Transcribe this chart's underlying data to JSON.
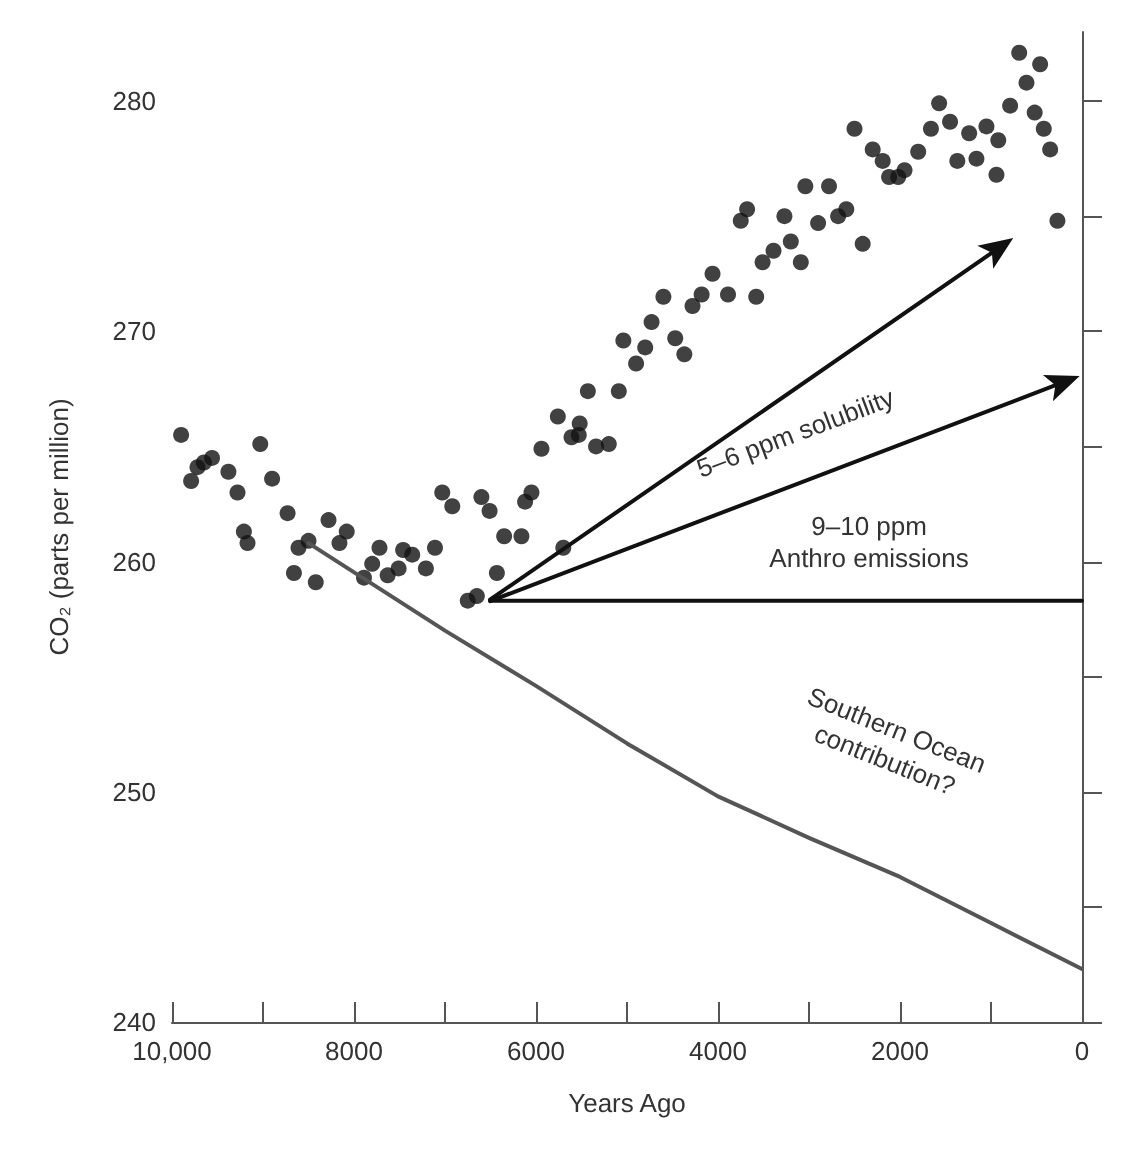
{
  "chart_data": {
    "type": "scatter",
    "xlabel": "Years Ago",
    "ylabel": "CO₂ (parts per million)",
    "xlim": [
      10000,
      0
    ],
    "xticks": [
      {
        "value": 10000,
        "label": "10,000"
      },
      {
        "value": 9000,
        "label": null
      },
      8000,
      {
        "value": 7000,
        "label": null
      },
      6000,
      {
        "value": 5000,
        "label": null
      },
      4000,
      {
        "value": 3000,
        "label": null
      },
      2000,
      {
        "value": 1000,
        "label": null
      },
      0
    ],
    "ylim": [
      240,
      283
    ],
    "yticks": [
      240,
      {
        "value": 245,
        "label": null
      },
      250,
      {
        "value": 255,
        "label": null
      },
      260,
      {
        "value": 265,
        "label": null
      },
      270,
      {
        "value": 275,
        "label": null
      },
      280
    ],
    "grid": false,
    "marker": "circle",
    "series": [
      {
        "type": "scatter",
        "color": "#111111",
        "x": [
          9900,
          9790,
          9720,
          9650,
          9560,
          9380,
          9280,
          9210,
          9170,
          9030,
          8900,
          8730,
          8660,
          8610,
          8500,
          8420,
          8280,
          8160,
          8080,
          7890,
          7800,
          7720,
          7630,
          7510,
          7460,
          7360,
          7210,
          7110,
          7030,
          6920,
          6750,
          6650,
          6600,
          6510,
          6430,
          6350,
          6160,
          6120,
          6050,
          5940,
          5760,
          5700,
          5610,
          5530,
          5520,
          5430,
          5340,
          5200,
          5090,
          5040,
          4900,
          4800,
          4730,
          4600,
          4470,
          4370,
          4280,
          4180,
          4060,
          3890,
          3750,
          3680,
          3580,
          3510,
          3390,
          3270,
          3200,
          3090,
          3040,
          2900,
          2780,
          2680,
          2590,
          2500,
          2410,
          2300,
          2190,
          2120,
          2020,
          1950,
          1800,
          1660,
          1570,
          1450,
          1370,
          1240,
          1160,
          1050,
          920,
          940,
          790,
          690,
          610,
          520,
          460,
          420,
          350,
          270
        ],
        "values": [
          265.5,
          263.5,
          264.1,
          264.3,
          264.5,
          263.9,
          263.0,
          261.3,
          260.8,
          265.1,
          263.6,
          262.1,
          259.5,
          260.6,
          260.9,
          259.1,
          261.8,
          260.8,
          261.3,
          259.3,
          259.9,
          260.6,
          259.4,
          259.7,
          260.5,
          260.3,
          259.7,
          260.6,
          263.0,
          262.4,
          258.3,
          258.5,
          262.8,
          262.2,
          259.5,
          261.1,
          261.1,
          262.6,
          263.0,
          264.9,
          266.3,
          260.6,
          265.4,
          265.5,
          266.0,
          267.4,
          265.0,
          265.1,
          267.4,
          269.6,
          268.6,
          269.3,
          270.4,
          271.5,
          269.7,
          269.0,
          271.1,
          271.6,
          272.5,
          271.6,
          274.8,
          275.3,
          271.5,
          273.0,
          273.5,
          275.0,
          273.9,
          273.0,
          276.3,
          274.7,
          276.3,
          275.0,
          275.3,
          278.8,
          273.8,
          277.9,
          277.4,
          276.7,
          276.7,
          277.0,
          277.8,
          278.8,
          279.9,
          279.1,
          277.4,
          278.6,
          277.5,
          278.9,
          278.3,
          276.8,
          279.8,
          282.1,
          280.8,
          279.5,
          281.6,
          278.8,
          277.9,
          274.8
        ]
      },
      {
        "type": "line",
        "color": "#555555",
        "marker": "none",
        "x": [
          8500,
          7000,
          6000,
          5000,
          4000,
          3000,
          2000,
          1000,
          0
        ],
        "values": [
          260.8,
          257.0,
          254.6,
          252.1,
          249.8,
          248.0,
          246.3,
          244.3,
          242.3
        ]
      },
      {
        "type": "line",
        "color": "#111111",
        "marker": "none",
        "x": [
          6500,
          0
        ],
        "values": [
          258.3,
          258.3
        ]
      }
    ],
    "annotations": [
      "5–6 ppm solubility",
      "9–10 ppm\nAnthro emissions",
      "Southern Ocean\ncontribution?"
    ]
  }
}
